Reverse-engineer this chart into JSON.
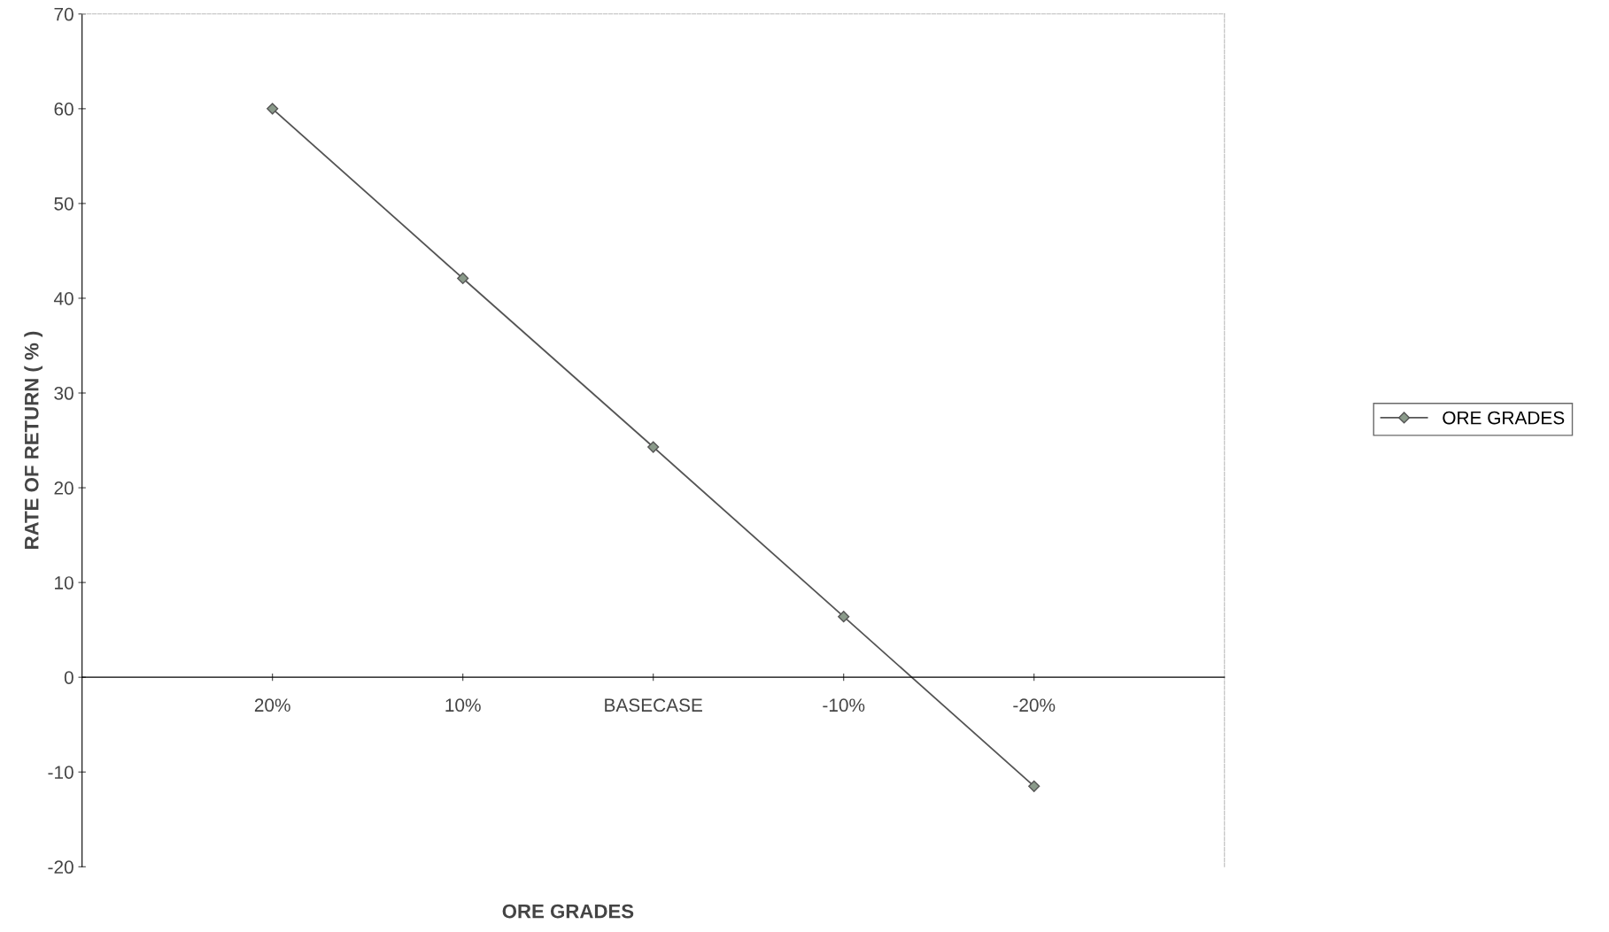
{
  "chart_data": {
    "type": "line",
    "xlabel": "ORE GRADES",
    "ylabel": "RATE OF RETURN ( % )",
    "categories": [
      "20%",
      "10%",
      "BASECASE",
      "-10%",
      "-20%"
    ],
    "series": [
      {
        "name": "ORE GRADES",
        "color": "#555555",
        "values": [
          60,
          42.1,
          24.3,
          6.4,
          -11.5
        ]
      }
    ],
    "ylim": [
      -20,
      70
    ],
    "yticks": [
      -20,
      -10,
      0,
      10,
      20,
      30,
      40,
      50,
      60,
      70
    ],
    "marker": "diamond",
    "line_style": "solid",
    "grid": false,
    "legend": "right"
  }
}
